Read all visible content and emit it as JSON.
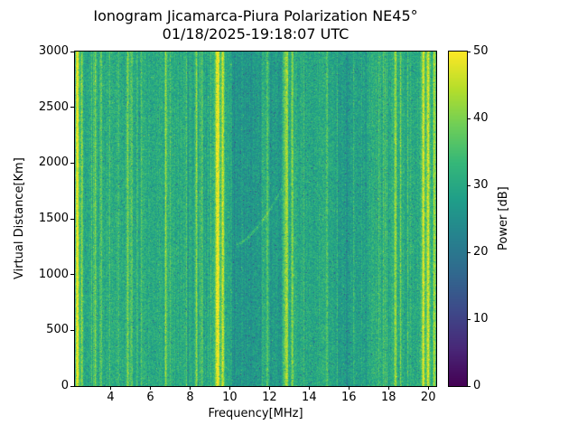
{
  "figure": {
    "title_line1": "Ionogram Jicamarca-Piura Polarization NE45°",
    "title_line2": "01/18/2025-19:18:07 UTC"
  },
  "chart_data": {
    "type": "heatmap",
    "title_line1": "Ionogram Jicamarca-Piura Polarization NE45°",
    "title_line2": "01/18/2025-19:18:07 UTC",
    "xlabel": "Frequency[MHz]",
    "ylabel": "Virtual Distance[Km]",
    "colorbar_label": "Power [dB]",
    "xlim": [
      2.2,
      20.4
    ],
    "ylim": [
      0,
      3000
    ],
    "clim": [
      0,
      50
    ],
    "x_ticks": [
      4,
      6,
      8,
      10,
      12,
      14,
      16,
      18,
      20
    ],
    "y_ticks": [
      0,
      500,
      1000,
      1500,
      2000,
      2500,
      3000
    ],
    "colorbar_ticks": [
      0,
      10,
      20,
      30,
      40,
      50
    ],
    "grid": false,
    "colormap": "viridis",
    "colormap_stops": [
      "#440154",
      "#482878",
      "#3e4989",
      "#31688e",
      "#26828e",
      "#1f9e89",
      "#35b779",
      "#6ece58",
      "#b5de2b",
      "#fde725"
    ],
    "background_power_db": 30.5,
    "noise_amplitude_db": 4.5,
    "rfi_stripes": [
      {
        "freq_mhz": 2.32,
        "sigma_mhz": 0.06,
        "amp_db": 20
      },
      {
        "freq_mhz": 2.55,
        "sigma_mhz": 0.04,
        "amp_db": 12
      },
      {
        "freq_mhz": 3.22,
        "sigma_mhz": 0.04,
        "amp_db": 10
      },
      {
        "freq_mhz": 3.5,
        "sigma_mhz": 0.03,
        "amp_db": 7
      },
      {
        "freq_mhz": 4.85,
        "sigma_mhz": 0.05,
        "amp_db": 9
      },
      {
        "freq_mhz": 5.05,
        "sigma_mhz": 0.04,
        "amp_db": 7
      },
      {
        "freq_mhz": 5.55,
        "sigma_mhz": 0.03,
        "amp_db": 6
      },
      {
        "freq_mhz": 6.78,
        "sigma_mhz": 0.035,
        "amp_db": 13
      },
      {
        "freq_mhz": 7.0,
        "sigma_mhz": 0.03,
        "amp_db": 6
      },
      {
        "freq_mhz": 8.32,
        "sigma_mhz": 0.035,
        "amp_db": 13
      },
      {
        "freq_mhz": 8.6,
        "sigma_mhz": 0.03,
        "amp_db": 6
      },
      {
        "freq_mhz": 9.38,
        "sigma_mhz": 0.09,
        "amp_db": 19
      },
      {
        "freq_mhz": 9.65,
        "sigma_mhz": 0.05,
        "amp_db": 15
      },
      {
        "freq_mhz": 11.9,
        "sigma_mhz": 0.04,
        "amp_db": 7
      },
      {
        "freq_mhz": 12.85,
        "sigma_mhz": 0.06,
        "amp_db": 14
      },
      {
        "freq_mhz": 13.15,
        "sigma_mhz": 0.04,
        "amp_db": 10
      },
      {
        "freq_mhz": 14.9,
        "sigma_mhz": 0.04,
        "amp_db": 5
      },
      {
        "freq_mhz": 16.25,
        "sigma_mhz": 0.03,
        "amp_db": 5
      },
      {
        "freq_mhz": 17.5,
        "sigma_mhz": 0.04,
        "amp_db": 5
      },
      {
        "freq_mhz": 18.35,
        "sigma_mhz": 0.05,
        "amp_db": 12
      },
      {
        "freq_mhz": 18.6,
        "sigma_mhz": 0.03,
        "amp_db": 8
      },
      {
        "freq_mhz": 19.75,
        "sigma_mhz": 0.06,
        "amp_db": 17
      },
      {
        "freq_mhz": 20.0,
        "sigma_mhz": 0.06,
        "amp_db": 17
      },
      {
        "freq_mhz": 20.3,
        "sigma_mhz": 0.05,
        "amp_db": 14
      }
    ],
    "dark_bands": [
      {
        "from_mhz": 10.1,
        "to_mhz": 11.65,
        "delta_db": -4
      },
      {
        "from_mhz": 12.05,
        "to_mhz": 12.6,
        "delta_db": -3
      },
      {
        "from_mhz": 13.9,
        "to_mhz": 14.4,
        "delta_db": -1.5
      },
      {
        "from_mhz": 15.3,
        "to_mhz": 16.9,
        "delta_db": -2.5
      }
    ],
    "echo_trace": {
      "f_start_mhz": 10.35,
      "f_end_mhz": 12.6,
      "km_start": 1270,
      "km_end": 1760,
      "curve_exp": 1.5,
      "boost_db": 8
    },
    "seed": 7
  }
}
